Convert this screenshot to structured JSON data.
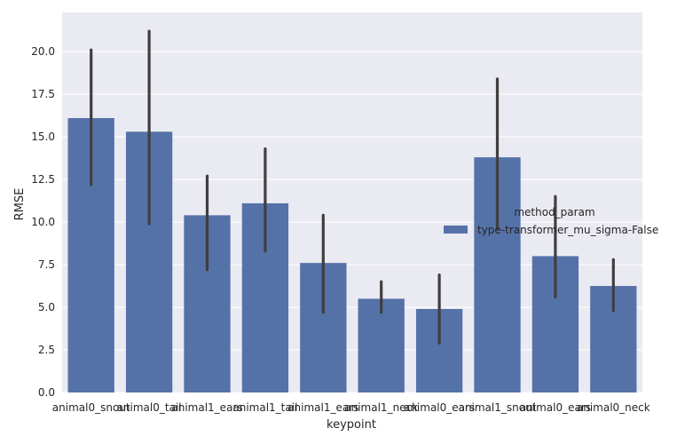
{
  "chart_data": {
    "type": "bar",
    "xlabel": "keypoint",
    "ylabel": "RMSE",
    "ylim": [
      0,
      22.3
    ],
    "yticks": [
      0.0,
      2.5,
      5.0,
      7.5,
      10.0,
      12.5,
      15.0,
      17.5,
      20.0
    ],
    "ytick_labels": [
      "0.0",
      "2.5",
      "5.0",
      "7.5",
      "10.0",
      "12.5",
      "15.0",
      "17.5",
      "20.0"
    ],
    "grid": true,
    "categories": [
      "animal0_snout",
      "animal0_tail",
      "animal1_ears",
      "animal1_tail",
      "animal1_ears",
      "animal1_neck",
      "animal0_ears",
      "animal1_snout",
      "animal0_ears",
      "animal0_neck"
    ],
    "values": [
      16.1,
      15.3,
      10.4,
      11.1,
      7.6,
      5.5,
      4.9,
      13.8,
      8.0,
      6.25
    ],
    "err_low": [
      12.2,
      9.9,
      7.2,
      8.3,
      4.7,
      4.7,
      2.9,
      9.6,
      5.6,
      4.8
    ],
    "err_high": [
      20.1,
      21.2,
      12.7,
      14.3,
      10.4,
      6.5,
      6.9,
      18.4,
      11.5,
      7.8
    ],
    "legend": {
      "title": "method_param",
      "entries": [
        "type-transformer_mu_sigma-False"
      ],
      "placement": "center-right"
    },
    "colors": {
      "bar": "#5572a8",
      "error": "#3f3f3f",
      "background": "#eaeaf2",
      "grid": "#ffffff"
    }
  }
}
